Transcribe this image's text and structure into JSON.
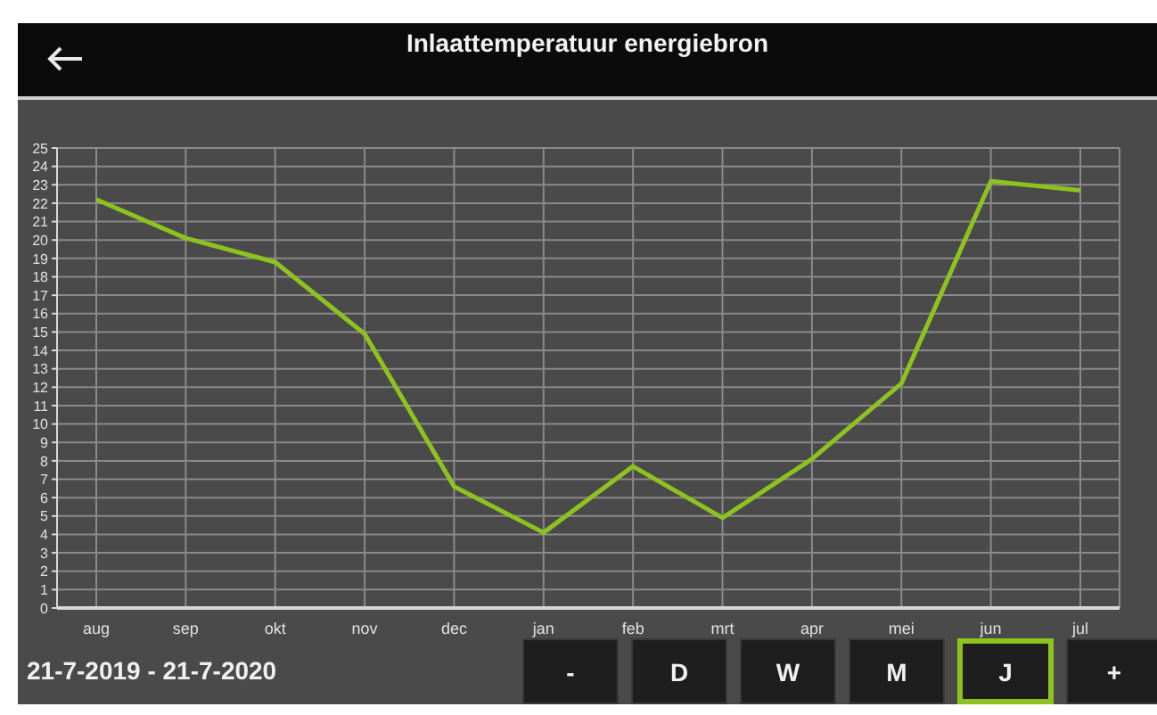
{
  "chart_data": {
    "type": "line",
    "title": "Inlaattemperatuur energiebron",
    "categories": [
      "aug",
      "sep",
      "okt",
      "nov",
      "dec",
      "jan",
      "feb",
      "mrt",
      "apr",
      "mei",
      "jun",
      "jul"
    ],
    "series": [
      {
        "color": "#8dc21f",
        "values": [
          22.2,
          20.1,
          18.8,
          14.9,
          6.6,
          4.1,
          7.7,
          4.9,
          8.1,
          12.2,
          23.2,
          22.7
        ]
      }
    ],
    "ylim": [
      0,
      25
    ],
    "yticks": [
      0,
      1,
      2,
      3,
      4,
      5,
      6,
      7,
      8,
      9,
      10,
      11,
      12,
      13,
      14,
      15,
      16,
      17,
      18,
      19,
      20,
      21,
      22,
      23,
      24,
      25
    ],
    "grid": true,
    "marker": "none",
    "line_style": "solid",
    "annotations": [
      "21-7-2019 - 21-7-2020",
      "-",
      "D",
      "W",
      "M",
      "J",
      "+"
    ]
  }
}
